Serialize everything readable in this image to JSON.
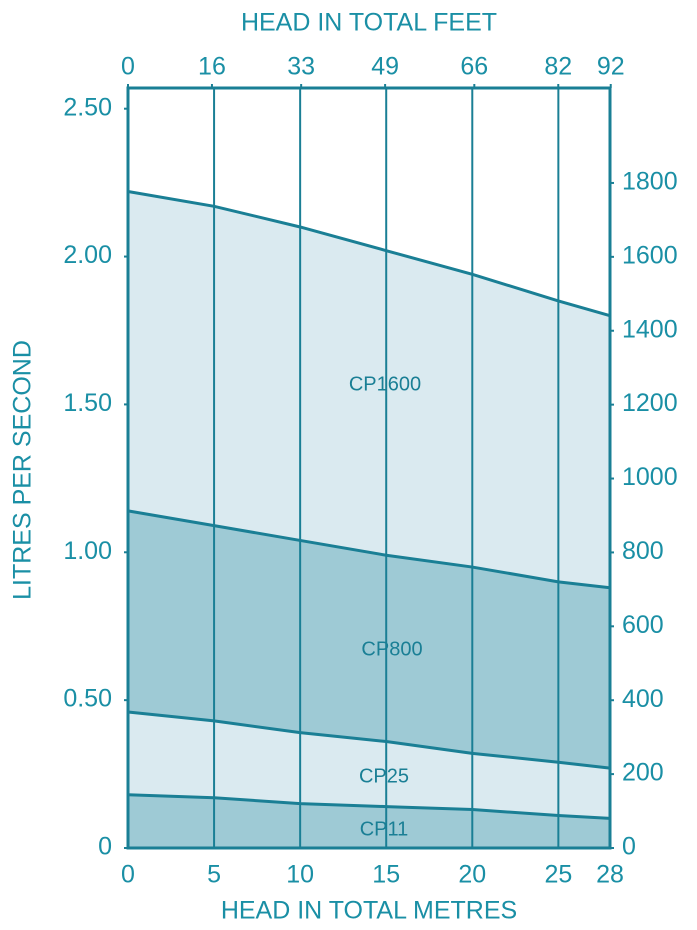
{
  "chart_data": {
    "type": "area",
    "xlabel": "HEAD IN TOTAL METRES",
    "x2label": "HEAD IN TOTAL FEET",
    "ylabel": "LITRES PER SECOND",
    "x": [
      0,
      5,
      10,
      15,
      20,
      25,
      28
    ],
    "xlim": [
      0,
      28
    ],
    "xticks": [
      0,
      5,
      10,
      15,
      20,
      25,
      28
    ],
    "x2lim": [
      0,
      91.86
    ],
    "x2ticks": [
      0,
      16,
      33,
      49,
      66,
      82,
      92
    ],
    "ylim": [
      0,
      2.57
    ],
    "yticks": [
      0,
      {
        "value": 0.5,
        "label": "0.50"
      },
      {
        "value": 1,
        "label": "1.00"
      },
      {
        "value": 1.5,
        "label": "1.50"
      },
      {
        "value": 2,
        "label": "2.00"
      },
      {
        "value": 2.5,
        "label": "2.50"
      }
    ],
    "y2lim": [
      0,
      2057
    ],
    "y2ticks": [
      0,
      200,
      400,
      600,
      800,
      1000,
      1200,
      1400,
      1600,
      1800
    ],
    "grid": true,
    "series": [
      {
        "name": "CP1600",
        "color": "#daeaf0",
        "values": [
          2.22,
          2.17,
          2.1,
          2.02,
          1.94,
          1.85,
          1.8
        ]
      },
      {
        "name": "CP800",
        "color": "#9ecad5",
        "values": [
          1.14,
          1.09,
          1.04,
          0.99,
          0.95,
          0.9,
          0.88
        ]
      },
      {
        "name": "CP25",
        "color": "#daeaf0",
        "values": [
          0.46,
          0.43,
          0.39,
          0.36,
          0.32,
          0.29,
          0.27
        ]
      },
      {
        "name": "CP11",
        "color": "#9ecad5",
        "values": [
          0.18,
          0.17,
          0.15,
          0.14,
          0.13,
          0.11,
          0.1
        ]
      }
    ]
  }
}
